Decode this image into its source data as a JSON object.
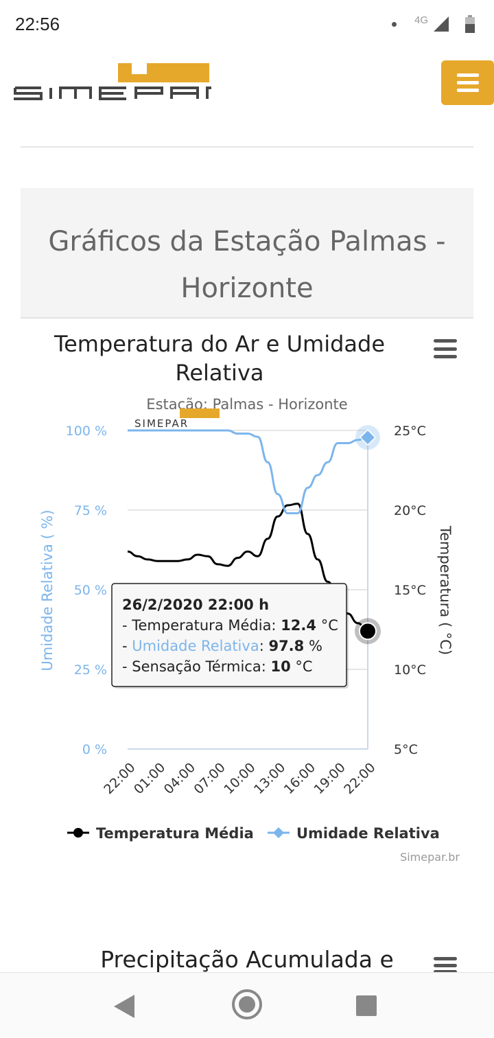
{
  "status_bar": {
    "time": "22:56",
    "network": "4G"
  },
  "header": {
    "logo_text": "SIMEPAR",
    "menu_icon": "hamburger-icon"
  },
  "page": {
    "title_line1": "Gráficos da Estação Palmas -",
    "title_line2": "Horizonte"
  },
  "chart_data": {
    "type": "line",
    "title_line1": "Temperatura do Ar e Umidade",
    "title_line2": "Relativa",
    "subtitle": "Estação: Palmas - Horizonte",
    "watermark": "SIMEPAR",
    "credits": "Simepar.br",
    "x_categories": [
      "22:00",
      "01:00",
      "04:00",
      "07:00",
      "10:00",
      "13:00",
      "16:00",
      "19:00",
      "22:00"
    ],
    "y_left": {
      "label": "Umidade Relativa ( %)",
      "ticks": [
        "100 %",
        "75 %",
        "50 %",
        "25 %",
        "0 %"
      ],
      "range": [
        0,
        100
      ],
      "color": "#7cb5ec"
    },
    "y_right": {
      "label": "Temperatura ( °C)",
      "ticks": [
        "25°C",
        "20°C",
        "15°C",
        "10°C",
        "5°C"
      ],
      "range": [
        5,
        25
      ]
    },
    "series": [
      {
        "name": "Temperatura Média",
        "color": "#000000",
        "axis": "right",
        "x": [
          0,
          1,
          2,
          3,
          4,
          5,
          6,
          7,
          8,
          9,
          10,
          11,
          12,
          13,
          14,
          15,
          16,
          17,
          18,
          19,
          20,
          21,
          22,
          23,
          24
        ],
        "values": [
          17.4,
          17.1,
          16.9,
          16.8,
          16.8,
          16.8,
          16.9,
          17.2,
          17.1,
          16.6,
          16.5,
          17.0,
          17.4,
          17.1,
          18.2,
          19.6,
          20.3,
          20.4,
          18.5,
          16.9,
          15.5,
          14.6,
          13.5,
          12.9,
          12.4
        ]
      },
      {
        "name": "Umidade Relativa",
        "color": "#7cb5ec",
        "axis": "left",
        "x": [
          0,
          1,
          2,
          3,
          4,
          5,
          6,
          7,
          8,
          9,
          10,
          11,
          12,
          13,
          14,
          15,
          16,
          17,
          18,
          19,
          20,
          21,
          22,
          23,
          24
        ],
        "values": [
          100,
          100,
          100,
          100,
          100,
          100,
          100,
          100,
          100,
          100,
          100,
          99,
          99,
          98,
          90,
          80,
          74,
          74,
          82,
          86,
          90,
          96,
          96,
          97,
          97.8
        ]
      }
    ],
    "tooltip": {
      "header": "26/2/2020 22:00 h",
      "line1_label": "- Temperatura Média: ",
      "line1_value": "12.4",
      "line1_unit": " °C",
      "line2_prefix": "- ",
      "line2_label": "Umidade Relativa",
      "line2_sep": ": ",
      "line2_value": "97.8",
      "line2_unit": " %",
      "line3_label": "- Sensação Térmica: ",
      "line3_value": "10",
      "line3_unit": " °C"
    }
  },
  "next_chart": {
    "title": "Precipitação Acumulada e"
  },
  "nav_bar": {
    "back": "back-icon",
    "home": "home-icon",
    "recent": "recent-apps-icon"
  }
}
